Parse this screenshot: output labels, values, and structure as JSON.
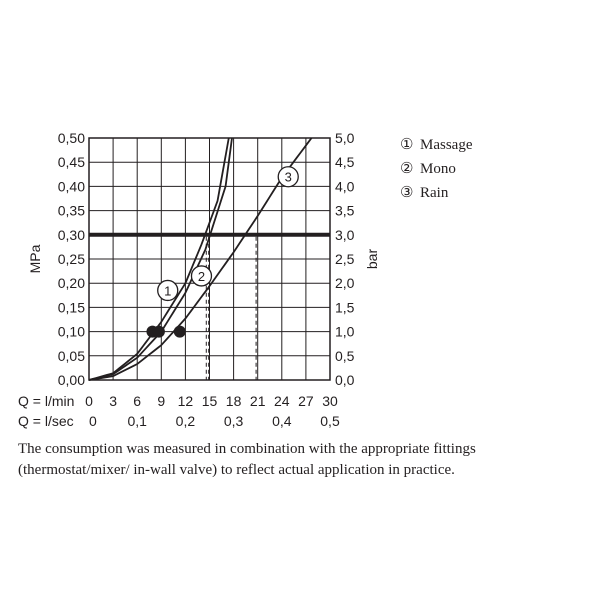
{
  "chart_data": {
    "type": "line",
    "left_axis": {
      "label": "MPa",
      "range": [
        0,
        0.5
      ],
      "ticks": [
        "0,00",
        "0,05",
        "0,10",
        "0,15",
        "0,20",
        "0,25",
        "0,30",
        "0,35",
        "0,40",
        "0,45",
        "0,50"
      ]
    },
    "right_axis": {
      "label": "bar",
      "range": [
        0,
        5
      ],
      "ticks": [
        "0,0",
        "0,5",
        "1,0",
        "1,5",
        "2,0",
        "2,5",
        "3,0",
        "3,5",
        "4,0",
        "4,5",
        "5,0"
      ]
    },
    "x_axis_primary": {
      "label": "Q = l/min",
      "range": [
        0,
        30
      ],
      "ticks": [
        "0",
        "3",
        "6",
        "9",
        "12",
        "15",
        "18",
        "21",
        "24",
        "27",
        "30"
      ]
    },
    "x_axis_secondary": {
      "label": "Q = l/sec",
      "ticks": [
        "0",
        "0,1",
        "0,2",
        "0,3",
        "0,4",
        "0,5"
      ]
    },
    "reference_line": {
      "y": 0.3
    },
    "series": [
      {
        "id": "1",
        "name": "Massage",
        "marker_label": "①",
        "circle_label": "1",
        "x": [
          0,
          3,
          6,
          8,
          9,
          12,
          14,
          16,
          17.4
        ],
        "y": [
          0,
          0.014,
          0.054,
          0.098,
          0.12,
          0.2,
          0.28,
          0.37,
          0.5
        ],
        "dot": {
          "x": 7.9,
          "y": 0.1
        },
        "label_at": {
          "x": 9.8,
          "y": 0.185
        },
        "dashed_at_reference_x": 14.6
      },
      {
        "id": "2",
        "name": "Mono",
        "marker_label": "②",
        "circle_label": "2",
        "x": [
          0,
          3,
          6,
          9,
          12,
          14.5,
          17,
          17.8
        ],
        "y": [
          0,
          0.012,
          0.046,
          0.1,
          0.18,
          0.27,
          0.4,
          0.5
        ],
        "dot": {
          "x": 8.7,
          "y": 0.1
        },
        "label_at": {
          "x": 14.0,
          "y": 0.215
        },
        "dashed_at_reference_x": 14.9
      },
      {
        "id": "3",
        "name": "Rain",
        "marker_label": "③",
        "circle_label": "3",
        "x": [
          0,
          3,
          6,
          9,
          12,
          15,
          18,
          21,
          24,
          27.7
        ],
        "y": [
          0,
          0.008,
          0.033,
          0.072,
          0.127,
          0.194,
          0.264,
          0.339,
          0.418,
          0.5
        ],
        "dot": {
          "x": 11.3,
          "y": 0.1
        },
        "label_at": {
          "x": 24.8,
          "y": 0.42
        },
        "dashed_at_reference_x": 20.8
      }
    ],
    "grid": true,
    "legend_position": "right"
  },
  "caption": "The consumption was measured in combination with the appropriate fittings (thermostat/mixer/ in-wall valve) to reflect actual application in practice."
}
